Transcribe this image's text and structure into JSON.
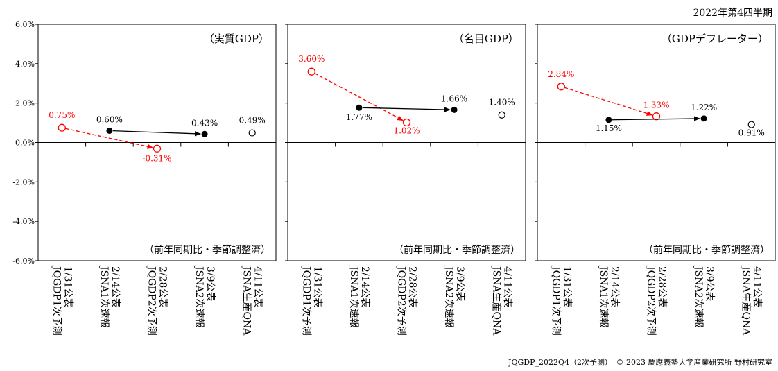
{
  "header": {
    "period": "2022年第4四半期"
  },
  "footer": {
    "credit": "JQGDP_2022Q4（2次予測）　© 2023 慶應義塾大学産業研究所 野村研究室"
  },
  "shared": {
    "y_ticks": [
      "6.0%",
      "4.0%",
      "2.0%",
      "0.0%",
      "-2.0%",
      "-4.0%",
      "-6.0%"
    ],
    "categories": [
      [
        "1/31公表",
        "JQGDP1次予測"
      ],
      [
        "2/14公表",
        "JSNA1次速報"
      ],
      [
        "2/28公表",
        "JQGDP2次予測"
      ],
      [
        "3/9公表",
        "JSNA2次速報"
      ],
      [
        "4/11公表",
        "JSNA生産QNA"
      ]
    ],
    "note": "（前年同期比・季節調整済）"
  },
  "colors": {
    "forecast": "#ff0000",
    "official": "#000000",
    "axis": "#000000"
  },
  "chart_data": [
    {
      "type": "line",
      "title": "（実質GDP）",
      "ylim": [
        -6,
        6
      ],
      "unit": "%",
      "series": [
        {
          "values": [
            0.75,
            null,
            -0.31,
            null,
            null
          ],
          "style": "red-dashed-open-circle-arrow"
        },
        {
          "values": [
            null,
            0.6,
            null,
            0.43,
            null
          ],
          "style": "black-solid-filled-circle-arrow"
        },
        {
          "values": [
            null,
            null,
            null,
            null,
            0.49
          ],
          "style": "black-open-circle"
        }
      ],
      "labels": [
        "0.75%",
        "0.60%",
        "-0.31%",
        "0.43%",
        "0.49%"
      ]
    },
    {
      "type": "line",
      "title": "（名目GDP）",
      "ylim": [
        -6,
        6
      ],
      "unit": "%",
      "series": [
        {
          "values": [
            3.6,
            null,
            1.02,
            null,
            null
          ],
          "style": "red-dashed-open-circle-arrow"
        },
        {
          "values": [
            null,
            1.77,
            null,
            1.66,
            null
          ],
          "style": "black-solid-filled-circle-arrow"
        },
        {
          "values": [
            null,
            null,
            null,
            null,
            1.4
          ],
          "style": "black-open-circle"
        }
      ],
      "labels": [
        "3.60%",
        "1.77%",
        "1.02%",
        "1.66%",
        "1.40%"
      ]
    },
    {
      "type": "line",
      "title": "（GDPデフレーター）",
      "ylim": [
        -6,
        6
      ],
      "unit": "%",
      "series": [
        {
          "values": [
            2.84,
            null,
            1.33,
            null,
            null
          ],
          "style": "red-dashed-open-circle-arrow"
        },
        {
          "values": [
            null,
            1.15,
            null,
            1.22,
            null
          ],
          "style": "black-solid-filled-circle-arrow"
        },
        {
          "values": [
            null,
            null,
            null,
            null,
            0.91
          ],
          "style": "black-open-circle"
        }
      ],
      "labels": [
        "2.84%",
        "1.15%",
        "1.33%",
        "1.22%",
        "0.91%"
      ]
    }
  ]
}
